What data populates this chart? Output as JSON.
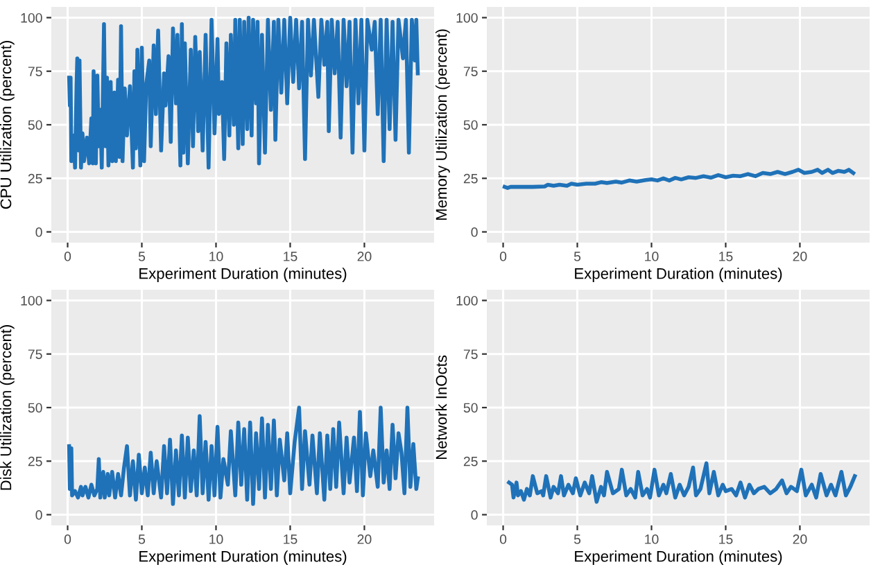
{
  "chart_data": [
    {
      "type": "line",
      "xlabel": "Experiment Duration (minutes)",
      "ylabel": "CPU Utilization (percent)",
      "xlim": [
        -1.1,
        24.7
      ],
      "ylim": [
        -5,
        105
      ],
      "xticks": [
        0,
        5,
        10,
        15,
        20
      ],
      "yticks": [
        0,
        25,
        50,
        75,
        100
      ],
      "grid": true,
      "line_style": "solid",
      "series": [
        {
          "color": "#1f72b8",
          "x": [
            0.1,
            0.15,
            0.2,
            0.25,
            0.4,
            0.5,
            0.6,
            0.65,
            0.75,
            0.8,
            0.9,
            1.0,
            1.1,
            1.3,
            1.45,
            1.6,
            1.7,
            1.75,
            1.9,
            2.0,
            2.1,
            2.2,
            2.3,
            2.45,
            2.55,
            2.65,
            2.75,
            2.9,
            3.0,
            3.15,
            3.25,
            3.4,
            3.5,
            3.6,
            3.7,
            3.85,
            4.0,
            4.2,
            4.4,
            4.5,
            4.6,
            4.7,
            4.9,
            5.0,
            5.15,
            5.3,
            5.5,
            5.6,
            5.8,
            5.95,
            6.1,
            6.3,
            6.5,
            6.6,
            6.8,
            6.95,
            7.1,
            7.3,
            7.4,
            7.6,
            7.7,
            7.8,
            7.9,
            8.1,
            8.3,
            8.45,
            8.6,
            8.8,
            8.9,
            9.1,
            9.3,
            9.5,
            9.7,
            9.9,
            10.1,
            10.2,
            10.4,
            10.55,
            10.7,
            10.9,
            11.0,
            11.2,
            11.3,
            11.5,
            11.6,
            11.8,
            11.9,
            12.1,
            12.2,
            12.4,
            12.5,
            12.7,
            12.8,
            12.9,
            13.1,
            13.3,
            13.5,
            13.7,
            13.9,
            14.0,
            14.2,
            14.4,
            14.6,
            14.8,
            15.0,
            15.2,
            15.4,
            15.6,
            15.8,
            16.0,
            16.2,
            16.4,
            16.6,
            16.9,
            17.1,
            17.3,
            17.5,
            17.6,
            17.8,
            18.0,
            18.2,
            18.4,
            18.6,
            18.8,
            19.0,
            19.2,
            19.4,
            19.6,
            19.8,
            20.0,
            20.2,
            20.5,
            20.7,
            20.9,
            21.1,
            21.3,
            21.5,
            21.7,
            21.9,
            22.1,
            22.3,
            22.6,
            22.8,
            23.0,
            23.2,
            23.4,
            23.5,
            23.6
          ],
          "values": [
            72,
            59,
            72,
            33,
            45,
            30,
            68,
            81,
            38,
            80,
            30,
            46,
            33,
            44,
            32,
            53,
            32,
            75,
            32,
            73,
            40,
            57,
            30,
            97,
            40,
            72,
            31,
            70,
            33,
            65,
            33,
            71,
            35,
            96,
            33,
            67,
            45,
            68,
            30,
            75,
            39,
            85,
            31,
            86,
            33,
            69,
            80,
            40,
            87,
            55,
            94,
            38,
            74,
            59,
            82,
            42,
            95,
            60,
            92,
            31,
            97,
            37,
            88,
            32,
            85,
            40,
            91,
            47,
            84,
            38,
            92,
            30,
            99,
            46,
            90,
            55,
            70,
            34,
            88,
            45,
            92,
            50,
            99,
            39,
            99,
            41,
            98,
            48,
            100,
            45,
            99,
            60,
            98,
            32,
            92,
            37,
            99,
            57,
            98,
            43,
            99,
            65,
            99,
            60,
            100,
            70,
            99,
            67,
            98,
            34,
            99,
            73,
            99,
            63,
            99,
            78,
            98,
            47,
            99,
            74,
            98,
            44,
            99,
            68,
            98,
            37,
            99,
            60,
            99,
            38,
            99,
            85,
            98,
            55,
            99,
            33,
            99,
            48,
            98,
            43,
            99,
            81,
            99,
            37,
            99,
            80,
            99,
            74
          ]
        }
      ]
    },
    {
      "type": "line",
      "xlabel": "Experiment Duration (minutes)",
      "ylabel": "Memory Utilization (percent)",
      "xlim": [
        -1.1,
        24.7
      ],
      "ylim": [
        -5,
        105
      ],
      "xticks": [
        0,
        5,
        10,
        15,
        20
      ],
      "yticks": [
        0,
        25,
        50,
        75,
        100
      ],
      "grid": true,
      "line_style": "solid",
      "series": [
        {
          "color": "#1f72b8",
          "x": [
            0.1,
            0.3,
            0.5,
            1.0,
            2.0,
            2.8,
            3.0,
            3.4,
            3.8,
            4.3,
            4.6,
            5.0,
            5.6,
            6.2,
            6.6,
            7.0,
            7.6,
            8.0,
            8.5,
            9.0,
            9.6,
            10.0,
            10.4,
            10.8,
            11.2,
            11.6,
            12.0,
            12.5,
            13.0,
            13.5,
            14.0,
            14.5,
            15.0,
            15.5,
            16.0,
            16.5,
            17.0,
            17.5,
            18.0,
            18.5,
            19.0,
            19.5,
            19.9,
            20.3,
            20.8,
            21.2,
            21.5,
            21.9,
            22.2,
            22.6,
            23.0,
            23.3,
            23.6
          ],
          "values": [
            21,
            20.5,
            21,
            21,
            21,
            21.2,
            22,
            21.5,
            22,
            21.5,
            22.5,
            22,
            22.5,
            22.5,
            23.2,
            22.8,
            23.5,
            23,
            24,
            23.5,
            24.2,
            24.5,
            24,
            25,
            24,
            25.2,
            24.5,
            25.5,
            25.2,
            26,
            25.3,
            26.5,
            25.5,
            26.2,
            26,
            27,
            26,
            27.5,
            27,
            28,
            27,
            28,
            29,
            27.5,
            28,
            29,
            27.5,
            29,
            27.5,
            28.5,
            28,
            29,
            27.5
          ]
        }
      ]
    },
    {
      "type": "line",
      "xlabel": "Experiment Duration (minutes)",
      "ylabel": "Disk Utilization (percent)",
      "xlim": [
        -1.1,
        24.7
      ],
      "ylim": [
        -5,
        105
      ],
      "xticks": [
        0,
        5,
        10,
        15,
        20
      ],
      "yticks": [
        0,
        25,
        50,
        75,
        100
      ],
      "grid": true,
      "line_style": "solid",
      "series": [
        {
          "color": "#1f72b8",
          "x": [
            0.1,
            0.15,
            0.25,
            0.3,
            0.5,
            0.7,
            0.9,
            1.0,
            1.2,
            1.4,
            1.6,
            1.8,
            2.0,
            2.1,
            2.2,
            2.4,
            2.5,
            2.7,
            2.8,
            3.0,
            3.2,
            3.4,
            3.6,
            3.8,
            4.0,
            4.2,
            4.4,
            4.6,
            4.8,
            5.0,
            5.2,
            5.4,
            5.6,
            5.8,
            6.0,
            6.3,
            6.5,
            6.7,
            6.9,
            7.1,
            7.3,
            7.5,
            7.7,
            7.9,
            8.1,
            8.3,
            8.5,
            8.7,
            8.9,
            9.1,
            9.3,
            9.5,
            9.7,
            9.9,
            10.1,
            10.3,
            10.5,
            10.8,
            11.0,
            11.3,
            11.5,
            11.7,
            11.9,
            12.1,
            12.3,
            12.5,
            12.7,
            12.9,
            13.1,
            13.3,
            13.5,
            13.7,
            13.9,
            14.1,
            14.3,
            14.6,
            14.8,
            15.0,
            15.3,
            15.6,
            15.8,
            16.0,
            16.3,
            16.5,
            16.8,
            17.0,
            17.3,
            17.5,
            17.7,
            17.9,
            18.1,
            18.3,
            18.6,
            18.8,
            19.0,
            19.3,
            19.5,
            19.7,
            19.9,
            20.1,
            20.4,
            20.6,
            20.9,
            21.1,
            21.3,
            21.5,
            21.7,
            21.9,
            22.1,
            22.3,
            22.5,
            22.7,
            22.9,
            23.1,
            23.3,
            23.5,
            23.6
          ],
          "values": [
            32,
            12,
            31,
            9,
            11,
            8,
            13,
            9,
            13,
            8,
            14,
            9,
            12,
            26,
            8,
            20,
            8,
            19,
            9,
            20,
            8,
            19,
            9,
            22,
            32,
            9,
            25,
            7,
            28,
            10,
            22,
            9,
            29,
            10,
            25,
            8,
            32,
            10,
            35,
            5,
            30,
            9,
            37,
            8,
            36,
            11,
            30,
            9,
            46,
            10,
            34,
            7,
            32,
            9,
            41,
            8,
            26,
            14,
            39,
            9,
            43,
            14,
            40,
            7,
            43,
            5,
            38,
            12,
            45,
            8,
            42,
            12,
            44,
            9,
            35,
            16,
            38,
            10,
            34,
            50,
            12,
            39,
            14,
            37,
            10,
            38,
            7,
            37,
            12,
            40,
            13,
            43,
            10,
            36,
            15,
            36,
            11,
            48,
            9,
            38,
            18,
            30,
            13,
            50,
            15,
            30,
            12,
            42,
            17,
            38,
            29,
            10,
            50,
            13,
            33,
            12,
            17
          ]
        }
      ]
    },
    {
      "type": "line",
      "xlabel": "Experiment Duration (minutes)",
      "ylabel": "Network InOcts",
      "xlim": [
        -1.1,
        24.7
      ],
      "ylim": [
        -5,
        105
      ],
      "xticks": [
        0,
        5,
        10,
        15,
        20
      ],
      "yticks": [
        0,
        25,
        50,
        75,
        100
      ],
      "grid": true,
      "line_style": "solid",
      "series": [
        {
          "color": "#1f72b8",
          "x": [
            0.4,
            0.6,
            0.7,
            0.9,
            1.0,
            1.2,
            1.4,
            1.6,
            1.8,
            2.0,
            2.3,
            2.6,
            2.7,
            2.9,
            3.2,
            3.4,
            3.7,
            3.9,
            4.1,
            4.4,
            4.7,
            4.9,
            5.2,
            5.5,
            5.8,
            6.0,
            6.3,
            6.6,
            6.8,
            7.0,
            7.4,
            7.8,
            8.0,
            8.3,
            8.6,
            8.9,
            9.1,
            9.4,
            9.7,
            9.9,
            10.2,
            10.5,
            10.8,
            11.0,
            11.3,
            11.6,
            11.9,
            12.2,
            12.5,
            12.8,
            13.0,
            13.3,
            13.7,
            13.9,
            14.2,
            14.5,
            14.8,
            15.0,
            15.4,
            15.7,
            16.0,
            16.3,
            16.6,
            16.9,
            17.2,
            17.6,
            18.0,
            18.4,
            18.8,
            19.1,
            19.4,
            19.8,
            20.1,
            20.4,
            20.8,
            21.1,
            21.4,
            21.8,
            22.1,
            22.4,
            22.8,
            23.1,
            23.4,
            23.7
          ],
          "values": [
            15,
            14,
            8,
            15,
            9,
            11,
            7,
            12,
            9,
            18,
            10,
            11,
            9,
            18,
            8,
            13,
            10,
            18,
            9,
            14,
            10,
            17,
            9,
            15,
            10,
            18,
            6,
            13,
            9,
            20,
            10,
            12,
            21,
            9,
            12,
            8,
            20,
            9,
            12,
            8,
            21,
            9,
            14,
            10,
            19,
            8,
            14,
            9,
            13,
            22,
            9,
            12,
            24,
            10,
            20,
            9,
            14,
            11,
            12,
            9,
            15,
            8,
            14,
            10,
            12,
            13,
            10,
            12,
            16,
            10,
            13,
            11,
            21,
            9,
            14,
            8,
            19,
            9,
            14,
            9,
            20,
            9,
            13,
            18
          ]
        }
      ]
    }
  ]
}
